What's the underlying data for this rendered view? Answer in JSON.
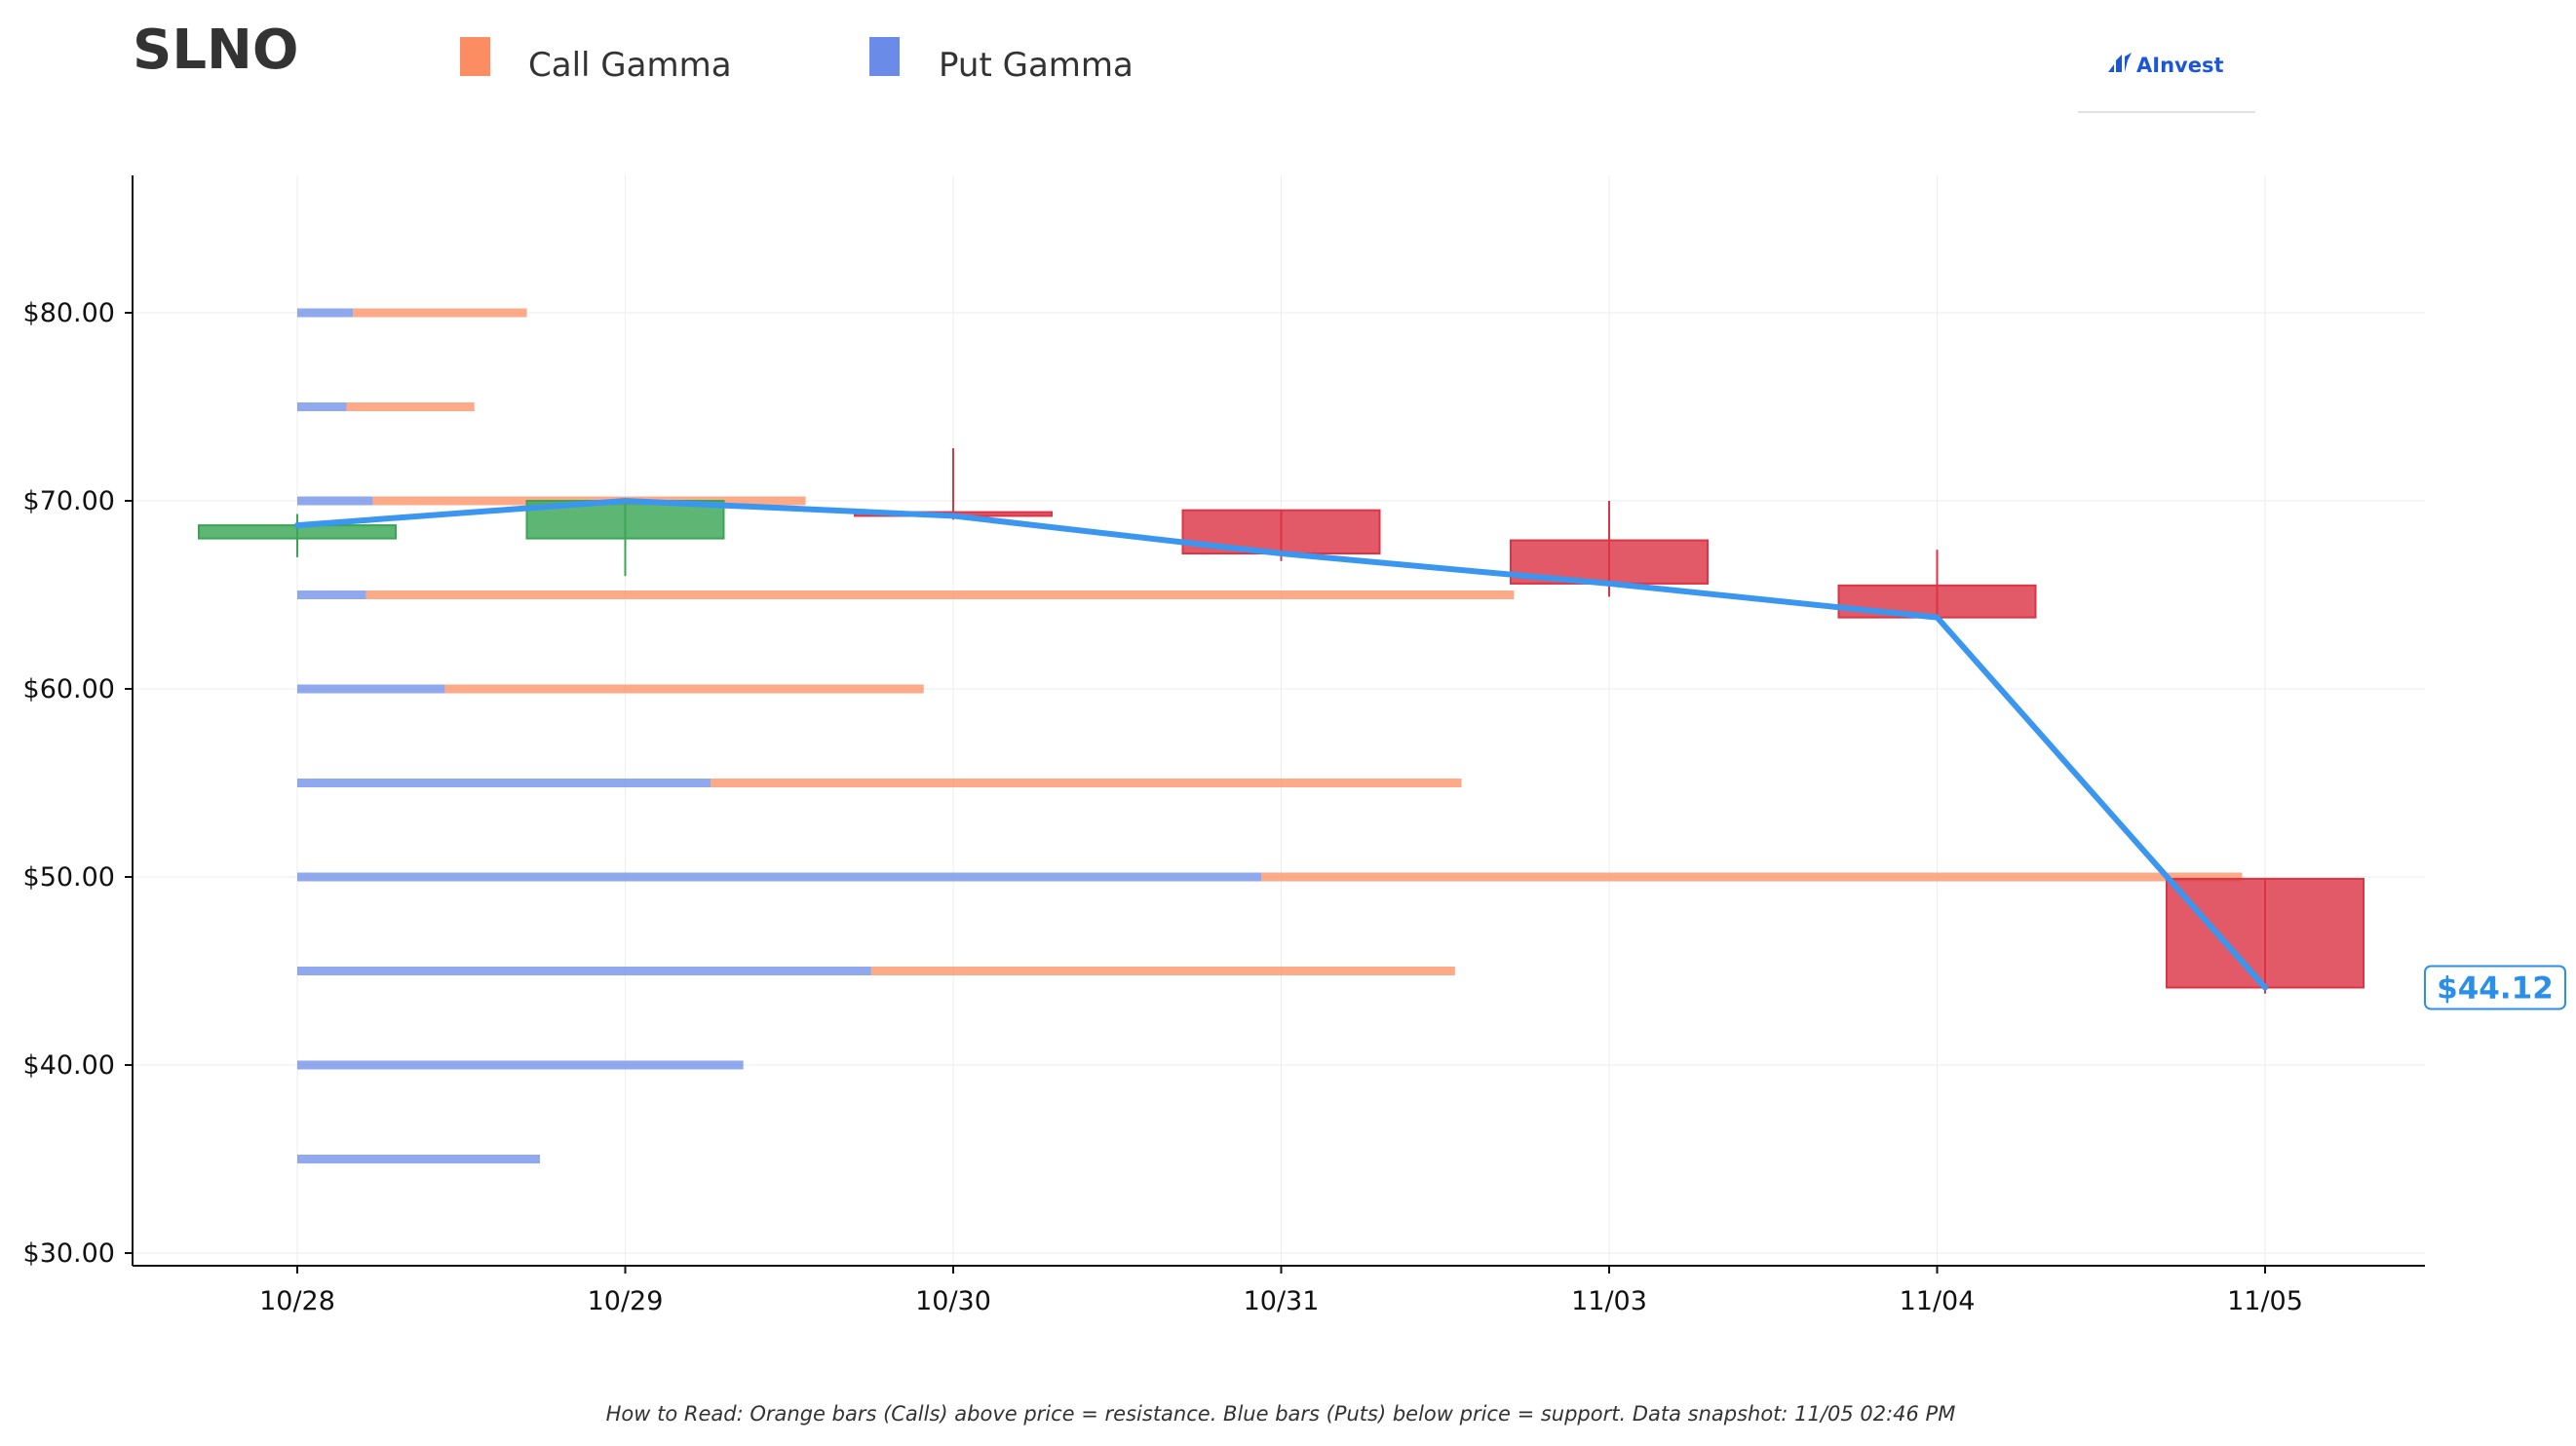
{
  "header": {
    "ticker": "SLNO",
    "brand": "AInvest"
  },
  "legend": [
    {
      "label": "Call Gamma",
      "color": "#fc8d62"
    },
    {
      "label": "Put Gamma",
      "color": "#6b8be8"
    }
  ],
  "footnote": "How to Read: Orange bars (Calls) above price = resistance. Blue bars (Puts) below price = support. Data snapshot: 11/05 02:46 PM",
  "colors": {
    "up": "#3aa655",
    "down": "#dc3545",
    "line": "#3b96ef",
    "call": "#fc8d62",
    "put": "#6b8be8",
    "price_tag": "#2b8fe8"
  },
  "chart_data": {
    "type": "candlestick",
    "title": "SLNO",
    "ylim": [
      29.5,
      87.5
    ],
    "yticks": [
      30,
      40,
      50,
      60,
      70,
      80
    ],
    "ytick_labels": [
      "$30.00",
      "$40.00",
      "$50.00",
      "$60.00",
      "$70.00",
      "$80.00"
    ],
    "grid": true,
    "legend_position": "top",
    "categories": [
      "10/28",
      "10/29",
      "10/30",
      "10/31",
      "11/03",
      "11/04",
      "11/05"
    ],
    "candles": [
      {
        "date": "10/28",
        "open": 68.0,
        "close": 68.7,
        "high": 69.3,
        "low": 67.0
      },
      {
        "date": "10/29",
        "open": 68.0,
        "close": 70.0,
        "high": 70.1,
        "low": 66.0
      },
      {
        "date": "10/30",
        "open": 69.4,
        "close": 69.2,
        "high": 72.8,
        "low": 69.0
      },
      {
        "date": "10/31",
        "open": 69.5,
        "close": 67.2,
        "high": 69.5,
        "low": 66.8
      },
      {
        "date": "11/03",
        "open": 67.9,
        "close": 65.6,
        "high": 70.0,
        "low": 64.9
      },
      {
        "date": "11/04",
        "open": 65.5,
        "close": 63.8,
        "high": 67.4,
        "low": 63.8
      },
      {
        "date": "11/05",
        "open": 49.9,
        "close": 44.12,
        "high": 49.9,
        "low": 43.8
      }
    ],
    "close_line": {
      "name": "Close",
      "values": [
        68.7,
        70.0,
        69.2,
        67.2,
        65.6,
        63.8,
        44.12
      ]
    },
    "gamma_levels": {
      "units": "days",
      "strikes": [
        80,
        75,
        70,
        65,
        60,
        55,
        50,
        45,
        40,
        35
      ],
      "put": [
        0.17,
        0.15,
        0.23,
        0.21,
        0.45,
        1.26,
        2.94,
        1.75,
        1.36,
        0.74
      ],
      "call": [
        0.53,
        0.39,
        1.32,
        3.5,
        1.46,
        2.29,
        2.99,
        1.78,
        0.0,
        0.0
      ]
    },
    "last_price": 44.12,
    "last_price_label": "$44.12"
  }
}
